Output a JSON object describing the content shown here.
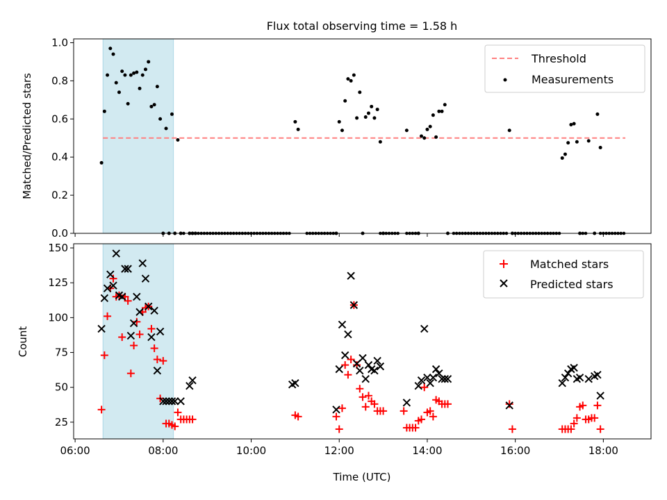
{
  "chart_data": [
    {
      "type": "scatter",
      "title": "Flux total observing time = 1.58 h",
      "xlabel": "",
      "ylabel": "Matched/Predicted stars",
      "ylim": [
        0,
        1.02
      ],
      "yticks": [
        "0.0",
        "0.2",
        "0.4",
        "0.6",
        "0.8",
        "1.0"
      ],
      "shaded_band": {
        "x_start": "06:38",
        "x_end": "08:14",
        "color": "#add8e6"
      },
      "legend": {
        "placement": "upper right",
        "entries": [
          "Threshold",
          "Measurements"
        ]
      },
      "series": [
        {
          "name": "Threshold",
          "kind": "dashed-line",
          "color": "#ff7f7f",
          "x": [
            "06:38",
            "18:30"
          ],
          "y": [
            0.5,
            0.5
          ]
        },
        {
          "name": "Measurements",
          "kind": "points",
          "color": "#000000",
          "x": [
            "06:36",
            "06:40",
            "06:44",
            "06:48",
            "06:52",
            "06:56",
            "07:00",
            "07:04",
            "07:08",
            "07:12",
            "07:16",
            "07:20",
            "07:24",
            "07:28",
            "07:32",
            "07:36",
            "07:40",
            "07:44",
            "07:48",
            "07:52",
            "07:56",
            "08:00",
            "08:04",
            "08:08",
            "08:12",
            "08:16",
            "08:20",
            "08:24",
            "08:36",
            "08:40",
            "08:44",
            "11:00",
            "11:04",
            "11:56",
            "12:00",
            "12:04",
            "12:08",
            "12:12",
            "12:16",
            "12:20",
            "12:24",
            "12:28",
            "12:32",
            "12:36",
            "12:40",
            "12:44",
            "12:48",
            "12:52",
            "12:56",
            "13:00",
            "13:32",
            "13:48",
            "13:52",
            "13:56",
            "14:00",
            "14:04",
            "14:08",
            "14:12",
            "14:16",
            "14:20",
            "14:24",
            "14:28",
            "15:52",
            "15:56",
            "17:04",
            "17:08",
            "17:12",
            "17:16",
            "17:20",
            "17:24",
            "17:28",
            "17:40",
            "17:48",
            "17:52",
            "17:56"
          ],
          "y": [
            0.37,
            0.64,
            0.83,
            0.97,
            0.94,
            0.79,
            0.74,
            0.85,
            0.83,
            0.68,
            0.83,
            0.84,
            0.845,
            0.76,
            0.83,
            0.86,
            0.9,
            0.665,
            0.675,
            0.77,
            0.6,
            0.0,
            0.55,
            0.0,
            0.625,
            0.0,
            0.49,
            0.0,
            0.0,
            0.0,
            0.0,
            0.585,
            0.545,
            0.0,
            0.585,
            0.54,
            0.695,
            0.81,
            0.8,
            0.83,
            0.605,
            0.74,
            0.0,
            0.61,
            0.63,
            0.665,
            0.605,
            0.65,
            0.48,
            0.0,
            0.54,
            0.0,
            0.51,
            0.5,
            0.545,
            0.56,
            0.62,
            0.505,
            0.64,
            0.64,
            0.675,
            0.0,
            0.54,
            0.0,
            0.395,
            0.415,
            0.475,
            0.57,
            0.575,
            0.48,
            0.0,
            0.485,
            0.0,
            0.625,
            0.45
          ]
        }
      ],
      "zero_points": {
        "color": "#000000",
        "y": 0,
        "x_ranges": [
          [
            "08:36",
            "10:52"
          ],
          [
            "11:16",
            "11:52"
          ],
          [
            "12:56",
            "13:20"
          ],
          [
            "13:32",
            "13:48"
          ],
          [
            "14:36",
            "15:48"
          ],
          [
            "16:00",
            "17:00"
          ],
          [
            "17:32",
            "17:36"
          ],
          [
            "17:56",
            "18:28"
          ]
        ],
        "x_single": [
          "08:16",
          "08:28",
          "08:24"
        ]
      }
    },
    {
      "type": "scatter",
      "title": "",
      "xlabel": "Time (UTC)",
      "ylabel": "Count",
      "ylim": [
        13,
        153
      ],
      "yticks": [
        "25",
        "50",
        "75",
        "100",
        "125",
        "150"
      ],
      "xticks": [
        "06:00",
        "08:00",
        "10:00",
        "12:00",
        "14:00",
        "16:00",
        "18:00"
      ],
      "xlim": [
        "05:58",
        "19:05"
      ],
      "shaded_band": {
        "x_start": "06:38",
        "x_end": "08:14",
        "color": "#add8e6"
      },
      "legend": {
        "placement": "upper right",
        "entries": [
          "Matched stars",
          "Predicted stars"
        ]
      },
      "series": [
        {
          "name": "Matched stars",
          "marker": "plus",
          "color": "#ff0000",
          "x": [
            "06:36",
            "06:40",
            "06:44",
            "06:48",
            "06:52",
            "06:56",
            "07:00",
            "07:04",
            "07:08",
            "07:12",
            "07:16",
            "07:20",
            "07:24",
            "07:28",
            "07:32",
            "07:36",
            "07:40",
            "07:44",
            "07:48",
            "07:52",
            "07:56",
            "08:00",
            "08:04",
            "08:08",
            "08:12",
            "08:16",
            "08:20",
            "08:24",
            "08:28",
            "08:32",
            "08:36",
            "08:40",
            "11:00",
            "11:04",
            "11:56",
            "12:00",
            "12:04",
            "12:08",
            "12:12",
            "12:16",
            "12:20",
            "12:24",
            "12:28",
            "12:32",
            "12:36",
            "12:40",
            "12:44",
            "12:48",
            "12:52",
            "12:56",
            "13:00",
            "13:28",
            "13:32",
            "13:36",
            "13:40",
            "13:44",
            "13:48",
            "13:52",
            "13:56",
            "14:00",
            "14:04",
            "14:08",
            "14:12",
            "14:16",
            "14:20",
            "14:24",
            "14:28",
            "15:52",
            "15:56",
            "17:04",
            "17:08",
            "17:12",
            "17:16",
            "17:20",
            "17:24",
            "17:28",
            "17:32",
            "17:36",
            "17:40",
            "17:44",
            "17:48",
            "17:52",
            "17:56"
          ],
          "y": [
            34,
            73,
            101,
            121,
            128,
            115,
            116,
            86,
            115,
            112,
            60,
            80,
            97,
            88,
            104,
            107,
            108,
            92,
            78,
            70,
            42,
            69,
            24,
            24,
            23,
            22,
            32,
            27,
            27,
            27,
            27,
            27,
            30,
            29,
            29,
            20,
            35,
            66,
            59,
            70,
            109,
            66,
            49,
            43,
            36,
            44,
            40,
            38,
            33,
            33,
            33,
            33,
            21,
            21,
            21,
            21,
            26,
            27,
            50,
            32,
            33,
            29,
            41,
            40,
            38,
            38,
            38,
            38,
            20,
            20,
            20,
            20,
            20,
            24,
            28,
            36,
            37,
            27,
            27,
            28,
            28,
            37,
            20
          ]
        },
        {
          "name": "Predicted stars",
          "marker": "x",
          "color": "#000000",
          "x": [
            "06:36",
            "06:40",
            "06:44",
            "06:48",
            "06:52",
            "06:56",
            "07:00",
            "07:04",
            "07:08",
            "07:12",
            "07:16",
            "07:20",
            "07:24",
            "07:28",
            "07:32",
            "07:36",
            "07:40",
            "07:44",
            "07:48",
            "07:52",
            "07:56",
            "08:00",
            "08:04",
            "08:08",
            "08:12",
            "08:16",
            "08:24",
            "08:36",
            "08:40",
            "10:56",
            "11:00",
            "11:56",
            "12:00",
            "12:04",
            "12:08",
            "12:12",
            "12:16",
            "12:20",
            "12:24",
            "12:28",
            "12:32",
            "12:36",
            "12:40",
            "12:44",
            "12:48",
            "12:52",
            "12:56",
            "13:32",
            "13:48",
            "13:52",
            "13:56",
            "14:00",
            "14:04",
            "14:08",
            "14:12",
            "14:16",
            "14:20",
            "14:24",
            "14:28",
            "15:52",
            "17:04",
            "17:08",
            "17:12",
            "17:16",
            "17:20",
            "17:24",
            "17:28",
            "17:40",
            "17:48",
            "17:52",
            "17:56"
          ],
          "y": [
            92,
            114,
            121,
            131,
            123,
            146,
            116,
            115,
            135,
            135,
            87,
            96,
            115,
            104,
            139,
            128,
            108,
            86,
            105,
            62,
            90,
            40,
            40,
            40,
            40,
            40,
            40,
            51,
            55,
            52,
            53,
            34,
            63,
            95,
            73,
            88,
            130,
            109,
            67,
            62,
            71,
            56,
            66,
            63,
            62,
            69,
            65,
            39,
            51,
            55,
            92,
            57,
            53,
            57,
            63,
            60,
            56,
            56,
            56,
            37,
            53,
            57,
            60,
            63,
            64,
            56,
            57,
            56,
            58,
            59,
            44
          ]
        }
      ]
    }
  ]
}
